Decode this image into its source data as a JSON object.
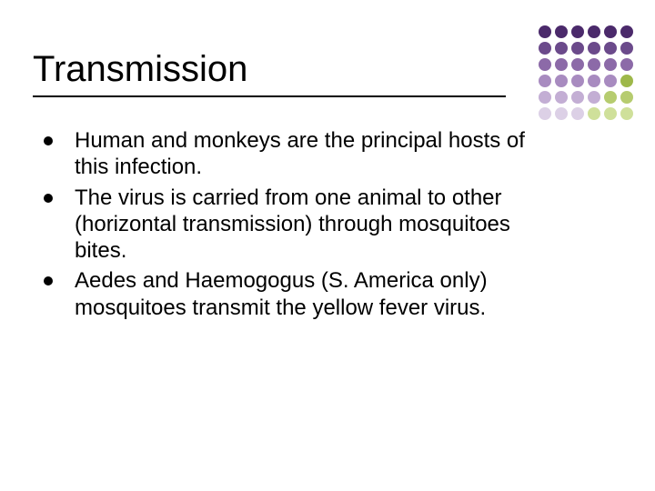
{
  "title": "Transmission",
  "bullets": [
    "Human and monkeys are the principal hosts of this infection.",
    "The virus is carried from one animal to other (horizontal transmission) through mosquitoes bites.",
    "Aedes and Haemogogus (S. America only) mosquitoes transmit the yellow fever virus."
  ],
  "style": {
    "background_color": "#ffffff",
    "title_fontsize": 40,
    "title_color": "#000000",
    "underline_color": "#000000",
    "body_fontsize": 24,
    "body_color": "#000000",
    "bullet_color": "#000000",
    "font_family": "Arial"
  },
  "decor_grid": {
    "rows": 6,
    "cols": 6,
    "cell": 14,
    "gap": 4,
    "colors": [
      [
        "#4b2a6b",
        "#4b2a6b",
        "#4b2a6b",
        "#4b2a6b",
        "#4b2a6b",
        "#4b2a6b"
      ],
      [
        "#6b4a8b",
        "#6b4a8b",
        "#6b4a8b",
        "#6b4a8b",
        "#6b4a8b",
        "#6b4a8b"
      ],
      [
        "#8c6aa8",
        "#8c6aa8",
        "#8c6aa8",
        "#8c6aa8",
        "#8c6aa8",
        "#8c6aa8"
      ],
      [
        "#a88bc0",
        "#a88bc0",
        "#a88bc0",
        "#a88bc0",
        "#a88bc0",
        "#9eb84a"
      ],
      [
        "#c3aed4",
        "#c3aed4",
        "#c3aed4",
        "#c3aed4",
        "#b6cc6f",
        "#b6cc6f"
      ],
      [
        "#dcd0e6",
        "#dcd0e6",
        "#dcd0e6",
        "#cfe09a",
        "#cfe09a",
        "#cfe09a"
      ]
    ]
  }
}
